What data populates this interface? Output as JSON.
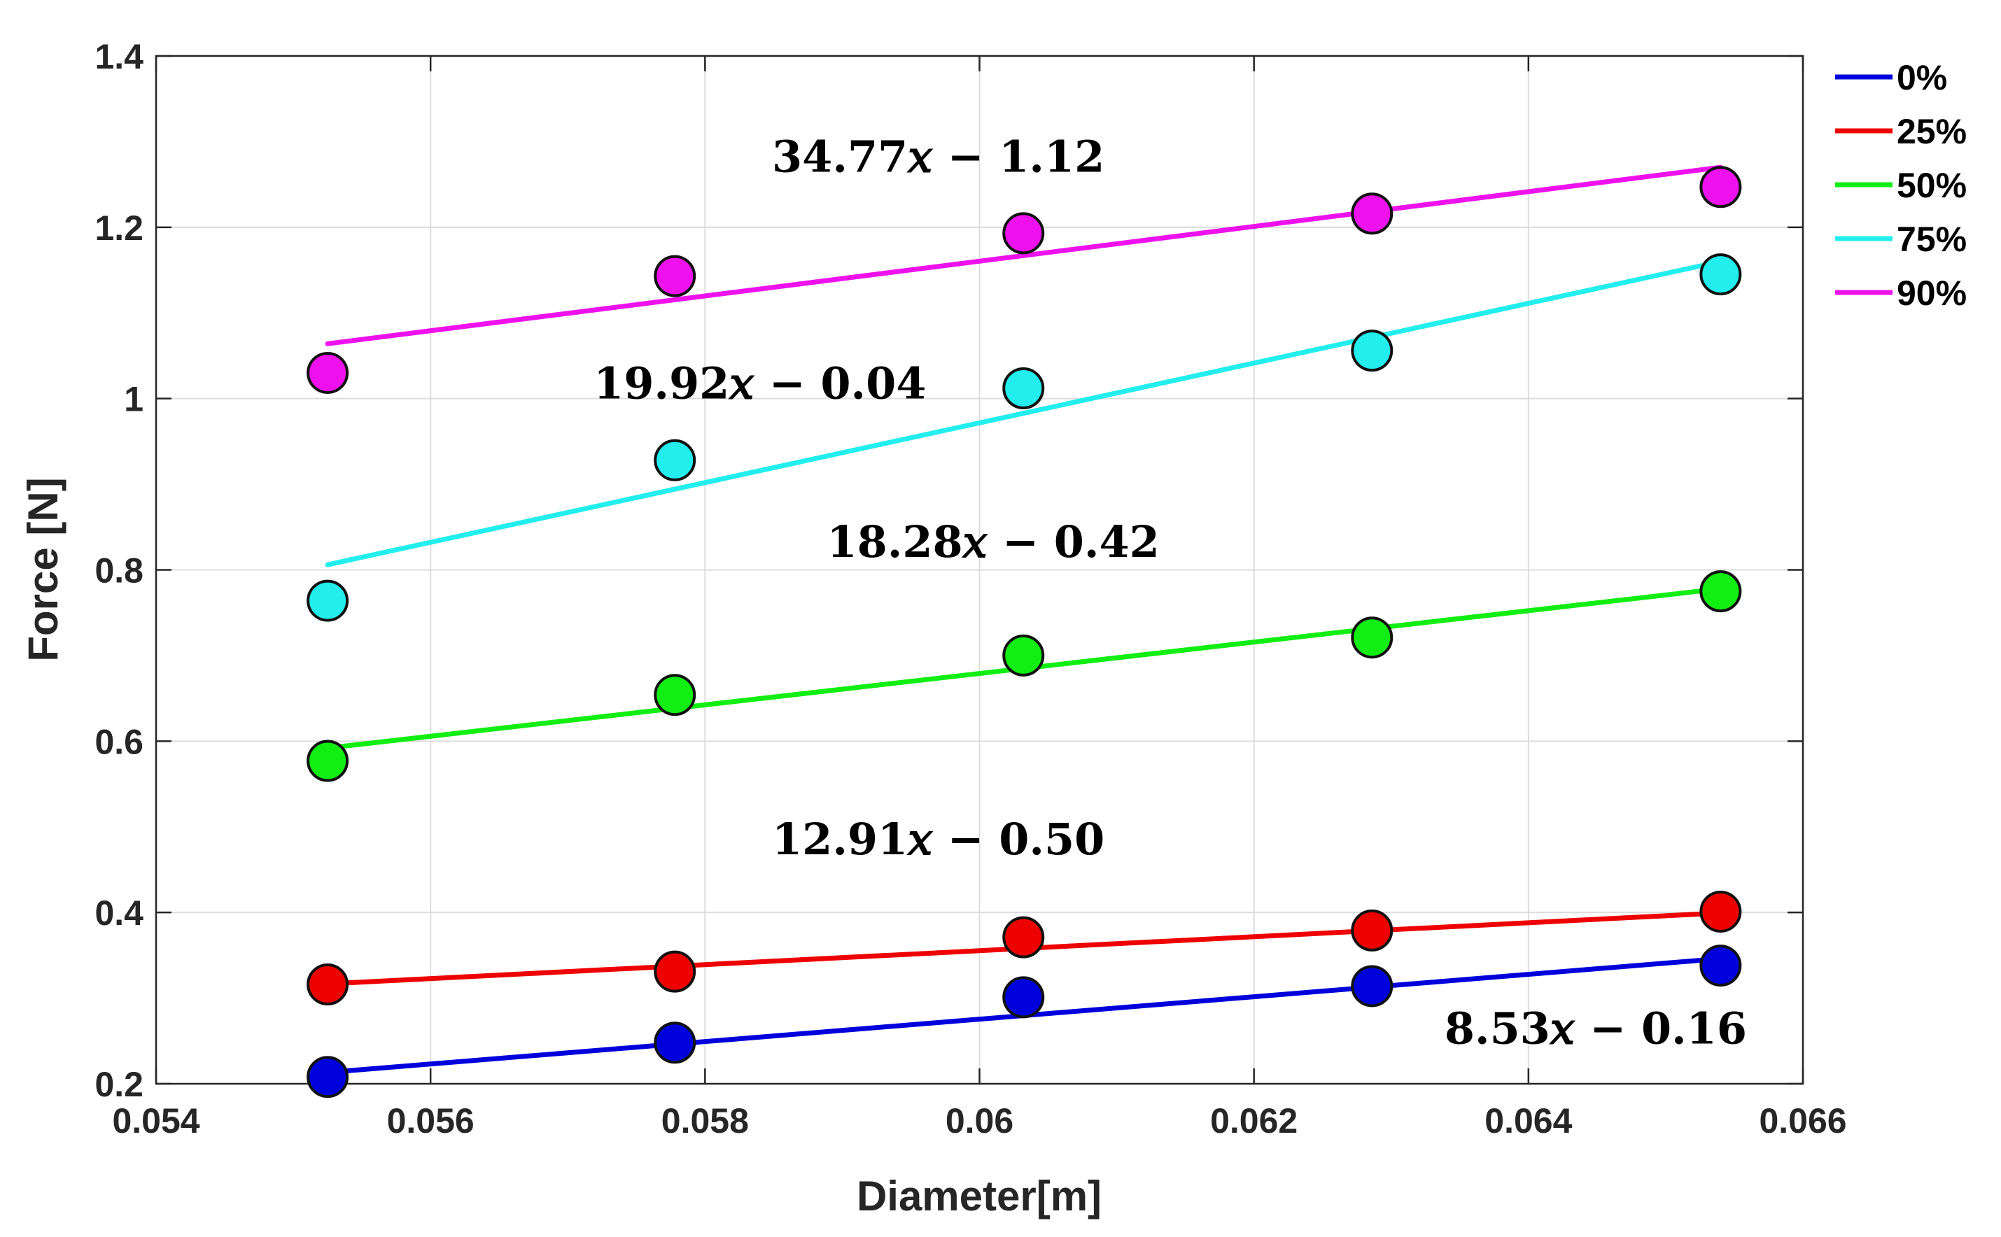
{
  "chart_data": {
    "type": "scatter",
    "title": "",
    "xlabel": "Diameter[m]",
    "ylabel": "Force [N]",
    "xlim": [
      0.054,
      0.066
    ],
    "ylim": [
      0.2,
      1.4
    ],
    "xticks": [
      0.054,
      0.056,
      0.058,
      0.06,
      0.062,
      0.064,
      0.066
    ],
    "xtick_labels": [
      "0.054",
      "0.056",
      "0.058",
      "0.06",
      "0.062",
      "0.064",
      "0.066"
    ],
    "yticks": [
      0.2,
      0.4,
      0.6,
      0.8,
      1.0,
      1.2,
      1.4
    ],
    "ytick_labels": [
      "0.2",
      "0.4",
      "0.6",
      "0.8",
      "1",
      "1.2",
      "1.4"
    ],
    "grid": true,
    "legend_position": "outside-top-right",
    "x": [
      0.05525,
      0.05778,
      0.06032,
      0.06286,
      0.0654
    ],
    "series": [
      {
        "name": "0%",
        "color": "#0000dd",
        "points": [
          0.208,
          0.248,
          0.301,
          0.314,
          0.338
        ],
        "fit": {
          "slope": 8.53,
          "intercept": -0.16,
          "start": 0.2133,
          "end": 0.3461
        }
      },
      {
        "name": "25%",
        "color": "#ee0000",
        "points": [
          0.316,
          0.331,
          0.371,
          0.379,
          0.401
        ],
        "fit": {
          "slope": 12.91,
          "intercept": -0.5,
          "start": 0.3167,
          "end": 0.3994
        }
      },
      {
        "name": "50%",
        "color": "#11ee11",
        "points": [
          0.577,
          0.654,
          0.7,
          0.721,
          0.775
        ],
        "fit": {
          "slope": 18.28,
          "intercept": -0.42,
          "start": 0.592,
          "end": 0.778
        }
      },
      {
        "name": "75%",
        "color": "#22eeee",
        "points": [
          0.764,
          0.928,
          1.012,
          1.056,
          1.145
        ],
        "fit": {
          "slope": 19.92,
          "intercept": -0.04,
          "start": 0.806,
          "end": 1.16
        }
      },
      {
        "name": "90%",
        "color": "#ee11ee",
        "points": [
          1.03,
          1.143,
          1.193,
          1.216,
          1.247
        ],
        "fit": {
          "slope": 34.77,
          "intercept": -1.12,
          "start": 1.064,
          "end": 1.27
        }
      }
    ],
    "annotations": [
      {
        "text": "34.77𝑥 − 1.12",
        "series": "90%",
        "x": 0.0597,
        "y": 1.265
      },
      {
        "text": "19.92𝑥 − 0.04",
        "series": "75%",
        "x": 0.0584,
        "y": 1.0
      },
      {
        "text": "18.28𝑥 − 0.42",
        "series": "50%",
        "x": 0.0601,
        "y": 0.815
      },
      {
        "text": "12.91𝑥 − 0.50",
        "series": "25%",
        "x": 0.0597,
        "y": 0.468
      },
      {
        "text": "8.53𝑥 − 0.16",
        "series": "0%",
        "x": 0.06449,
        "y": 0.247
      }
    ]
  }
}
